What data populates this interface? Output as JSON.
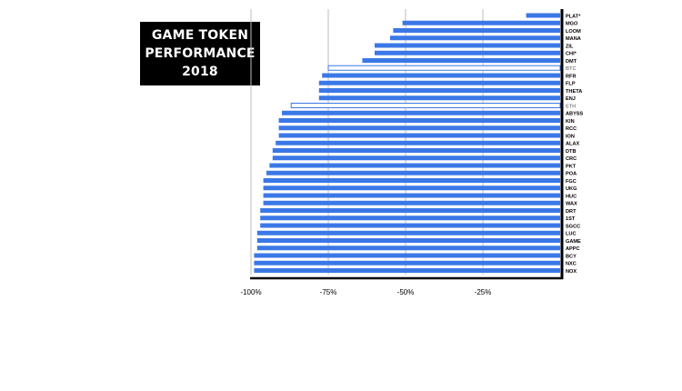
{
  "title_box": {
    "line1": "GAME TOKEN",
    "line2": "PERFORMANCE",
    "line3": "2018"
  },
  "colors": {
    "bar": "#3b78e7",
    "bar_hollow_fill": "#ffffff",
    "axis": "#000000",
    "grid": "#bdbdbd",
    "title_bg": "#000000",
    "title_text": "#ffffff"
  },
  "chart_data": {
    "type": "bar",
    "orientation": "horizontal",
    "title": "GAME TOKEN PERFORMANCE 2018",
    "xlabel": "",
    "ylabel": "",
    "xlim": [
      -100,
      0
    ],
    "grid": true,
    "x_ticks": [
      {
        "value": -100,
        "label": "-100%"
      },
      {
        "value": -75,
        "label": "-75%"
      },
      {
        "value": -50,
        "label": "-50%"
      },
      {
        "value": -25,
        "label": "-25%"
      }
    ],
    "categories": [
      "PLAT*",
      "MGO",
      "LOOM",
      "MANA",
      "ZIL",
      "CHI*",
      "DMT",
      "BTC",
      "RFR",
      "FLP",
      "THETA",
      "ENJ",
      "ETH",
      "ABYSS",
      "KIN",
      "RCC",
      "ION",
      "ALAX",
      "DTB",
      "CRC",
      "PKT",
      "POA",
      "FGC",
      "UKG",
      "HUC",
      "WAX",
      "DRT",
      "1ST",
      "SGCC",
      "LUC",
      "GAME",
      "APPC",
      "BCY",
      "NXC",
      "NOX"
    ],
    "values": [
      -11,
      -51,
      -54,
      -55,
      -60,
      -60,
      -64,
      -75,
      -77,
      -78,
      -78,
      -78,
      -87,
      -90,
      -91,
      -91,
      -91,
      -92,
      -93,
      -93,
      -94,
      -95,
      -96,
      -96,
      -96,
      -96,
      -97,
      -97,
      -97,
      -98,
      -98,
      -98,
      -99,
      -99,
      -99
    ],
    "hollow_categories": [
      "BTC",
      "ETH"
    ]
  }
}
